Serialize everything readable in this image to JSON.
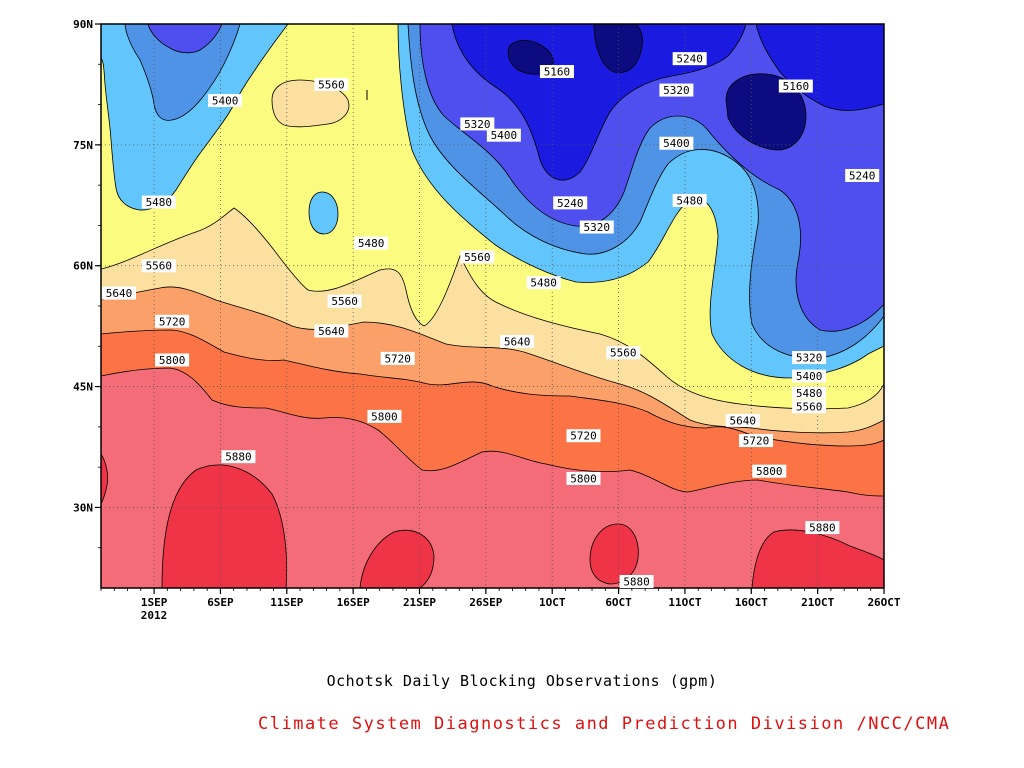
{
  "chart_data": {
    "type": "heatmap",
    "title": "Ochotsk Daily Blocking Observations (gpm)",
    "credit": "Climate System Diagnostics and Prediction Division /NCC/CMA",
    "x_ticks": [
      "1SEP",
      "6SEP",
      "11SEP",
      "16SEP",
      "21SEP",
      "26SEP",
      "1OCT",
      "6OCT",
      "11OCT",
      "16OCT",
      "21OCT",
      "26OCT"
    ],
    "x_year_label": "2012",
    "y_ticks": [
      "30N",
      "45N",
      "60N",
      "75N",
      "90N"
    ],
    "xlim": [
      "2012-08-28",
      "2012-10-26"
    ],
    "ylim": [
      20,
      90
    ],
    "grid": true,
    "contour_levels": [
      5160,
      5240,
      5320,
      5400,
      5480,
      5560,
      5640,
      5720,
      5800,
      5880
    ],
    "contour_labels": [
      {
        "text": "5400",
        "date": "2012-09-05",
        "lat": 80.5
      },
      {
        "text": "5560",
        "date": "2012-09-13",
        "lat": 82.5
      },
      {
        "text": "5480",
        "date": "2012-08-31",
        "lat": 67.9
      },
      {
        "text": "5480",
        "date": "2012-09-16",
        "lat": 62.8
      },
      {
        "text": "5560",
        "date": "2012-08-31",
        "lat": 60.0
      },
      {
        "text": "5640",
        "date": "2012-08-28",
        "lat": 56.6
      },
      {
        "text": "5720",
        "date": "2012-09-01",
        "lat": 53.1
      },
      {
        "text": "5800",
        "date": "2012-09-01",
        "lat": 48.3
      },
      {
        "text": "5560",
        "date": "2012-09-14",
        "lat": 55.6
      },
      {
        "text": "5640",
        "date": "2012-09-13",
        "lat": 51.9
      },
      {
        "text": "5720",
        "date": "2012-09-18",
        "lat": 48.5
      },
      {
        "text": "5800",
        "date": "2012-09-17",
        "lat": 41.3
      },
      {
        "text": "5880",
        "date": "2012-09-06",
        "lat": 36.3
      },
      {
        "text": "5560",
        "date": "2012-09-24",
        "lat": 61.1
      },
      {
        "text": "5320",
        "date": "2012-09-24",
        "lat": 77.6
      },
      {
        "text": "5400",
        "date": "2012-09-26",
        "lat": 76.2
      },
      {
        "text": "5160",
        "date": "2012-09-30",
        "lat": 84.1
      },
      {
        "text": "5240",
        "date": "2012-10-01",
        "lat": 67.8
      },
      {
        "text": "5320",
        "date": "2012-10-03",
        "lat": 64.8
      },
      {
        "text": "5480",
        "date": "2012-09-29",
        "lat": 57.9
      },
      {
        "text": "5640",
        "date": "2012-09-27",
        "lat": 50.6
      },
      {
        "text": "5560",
        "date": "2012-10-05",
        "lat": 49.2
      },
      {
        "text": "5720",
        "date": "2012-10-02",
        "lat": 38.9
      },
      {
        "text": "5800",
        "date": "2012-10-02",
        "lat": 33.6
      },
      {
        "text": "5880",
        "date": "2012-10-06",
        "lat": 20.5
      },
      {
        "text": "5240",
        "date": "2012-10-10",
        "lat": 85.7
      },
      {
        "text": "5320",
        "date": "2012-10-09",
        "lat": 81.8
      },
      {
        "text": "5160",
        "date": "2012-10-18",
        "lat": 82.3
      },
      {
        "text": "5400",
        "date": "2012-10-09",
        "lat": 75.2
      },
      {
        "text": "5480",
        "date": "2012-10-10",
        "lat": 68.1
      },
      {
        "text": "5240",
        "date": "2012-10-23",
        "lat": 71.2
      },
      {
        "text": "5320",
        "date": "2012-10-19",
        "lat": 48.6
      },
      {
        "text": "5400",
        "date": "2012-10-19",
        "lat": 46.3
      },
      {
        "text": "5480",
        "date": "2012-10-19",
        "lat": 44.2
      },
      {
        "text": "5560",
        "date": "2012-10-19",
        "lat": 42.5
      },
      {
        "text": "5640",
        "date": "2012-10-14",
        "lat": 40.8
      },
      {
        "text": "5720",
        "date": "2012-10-15",
        "lat": 38.3
      },
      {
        "text": "5800",
        "date": "2012-10-16",
        "lat": 34.5
      },
      {
        "text": "5880",
        "date": "2012-10-20",
        "lat": 27.5
      }
    ]
  }
}
